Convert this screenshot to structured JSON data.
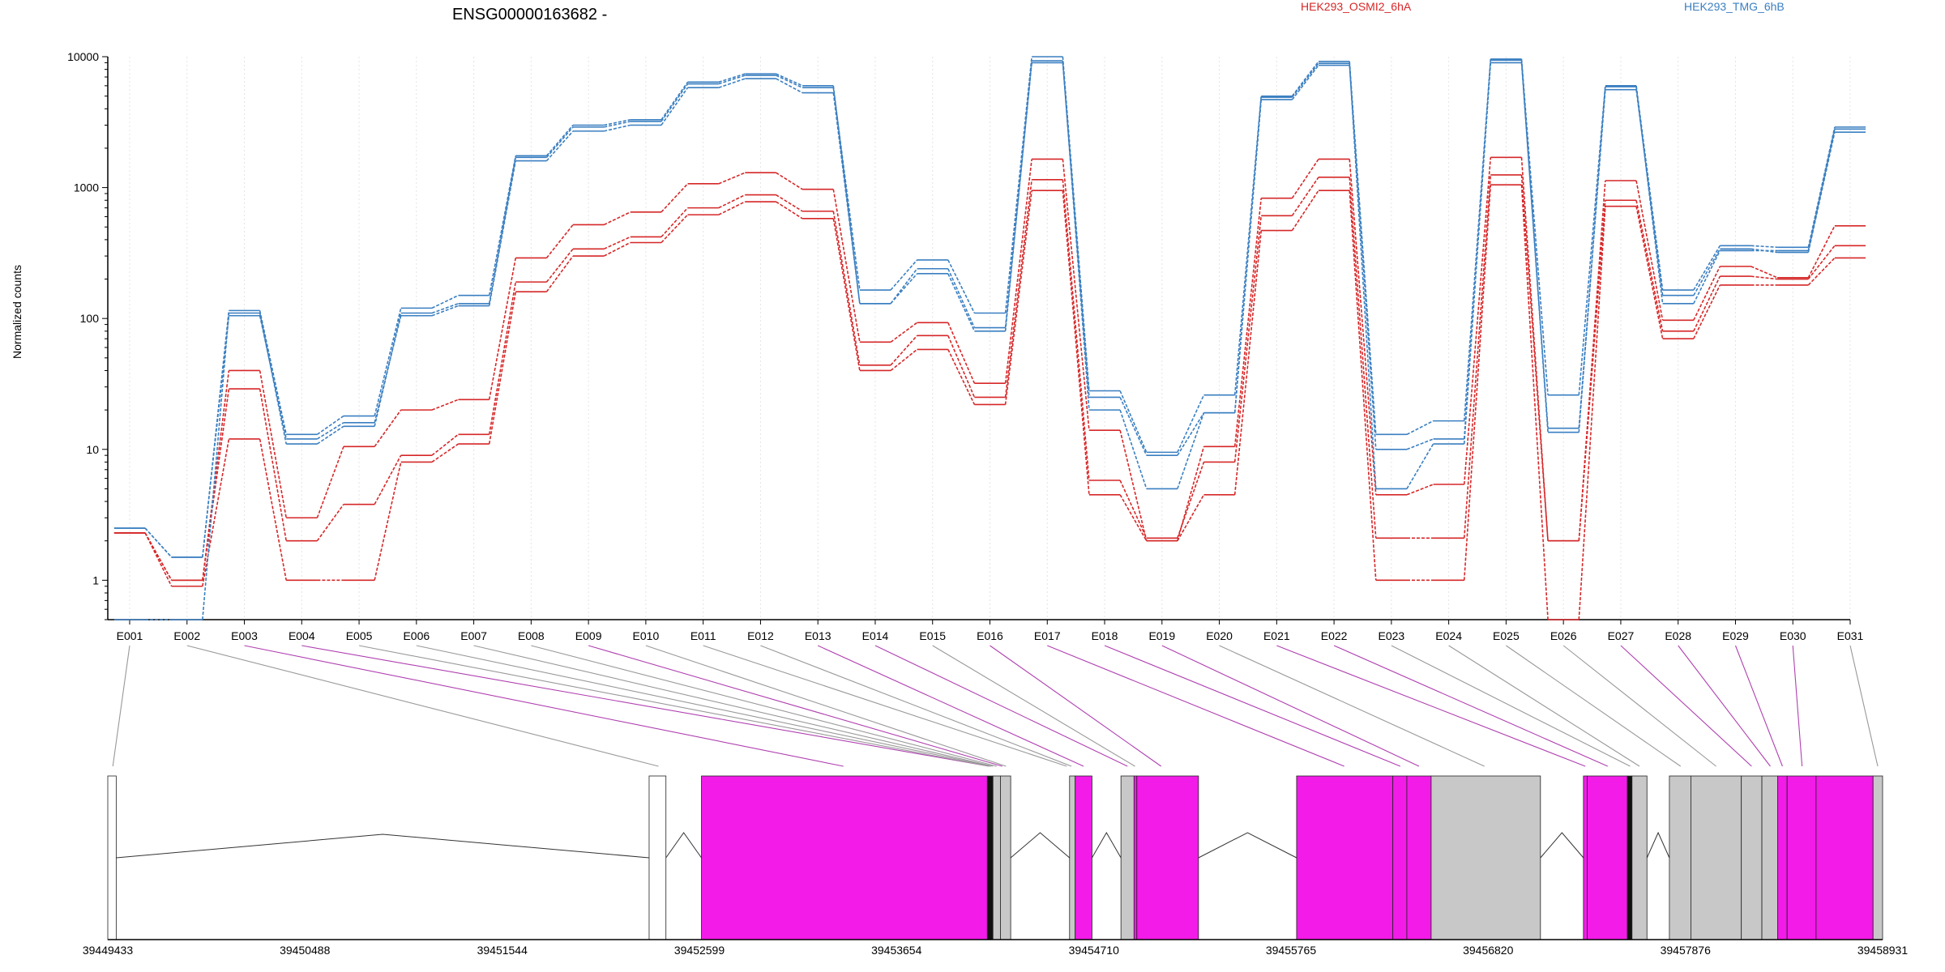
{
  "chart_data": {
    "type": "line",
    "title": "ENSG00000163682 -",
    "ylabel": "Normalized counts",
    "xlabel": "",
    "yscale": "log",
    "ylim": [
      0.5,
      10000
    ],
    "yticks": [
      "1",
      "10",
      "100",
      "1000",
      "10000"
    ],
    "grid": "vertical dotted",
    "legend_position": "top",
    "legend": [
      {
        "name": "HEK293_OSMI2_6hA",
        "color": "#d62728"
      },
      {
        "name": "HEK293_TMG_6hB",
        "color": "#3a7fc1"
      }
    ],
    "categories": [
      "E001",
      "E002",
      "E003",
      "E004",
      "E005",
      "E006",
      "E007",
      "E008",
      "E009",
      "E010",
      "E011",
      "E012",
      "E013",
      "E014",
      "E015",
      "E016",
      "E017",
      "E018",
      "E019",
      "E020",
      "E021",
      "E022",
      "E023",
      "E024",
      "E025",
      "E026",
      "E027",
      "E028",
      "E029",
      "E030",
      "E031"
    ],
    "series": [
      {
        "group": "HEK293_OSMI2_6hA",
        "color": "#d62728",
        "values": [
          2.3,
          0.9,
          12,
          1,
          1,
          8,
          11,
          160,
          300,
          380,
          620,
          780,
          580,
          40,
          58,
          22,
          950,
          4.5,
          2,
          4.5,
          470,
          950,
          1,
          1,
          1050,
          0.5,
          720,
          70,
          180,
          180,
          290
        ]
      },
      {
        "group": "HEK293_OSMI2_6hA",
        "color": "#d62728",
        "values": [
          2.3,
          1,
          29,
          2,
          3.8,
          9,
          13,
          190,
          340,
          420,
          700,
          880,
          660,
          44,
          74,
          25,
          1150,
          5.8,
          2.1,
          8,
          610,
          1200,
          2.1,
          2.1,
          1250,
          2,
          800,
          80,
          210,
          200,
          360
        ]
      },
      {
        "group": "HEK293_OSMI2_6hA",
        "color": "#d62728",
        "values": [
          2.3,
          1,
          40,
          3,
          10.5,
          20,
          24,
          290,
          520,
          650,
          1070,
          1300,
          970,
          66,
          93,
          32,
          1650,
          14,
          2,
          10.5,
          830,
          1650,
          4.5,
          5.4,
          1700,
          2,
          1130,
          97,
          250,
          205,
          510
        ]
      },
      {
        "group": "HEK293_TMG_6hB",
        "color": "#3a7fc1",
        "values": [
          0.5,
          0.5,
          110,
          11,
          15,
          110,
          130,
          1700,
          2900,
          3200,
          6200,
          7200,
          5800,
          165,
          280,
          110,
          10000,
          28,
          9.5,
          26,
          5000,
          9200,
          13,
          16.5,
          9600,
          26,
          6000,
          165,
          360,
          350,
          2900
        ]
      },
      {
        "group": "HEK293_TMG_6hB",
        "color": "#3a7fc1",
        "values": [
          2.5,
          1.5,
          105,
          12,
          16,
          105,
          125,
          1600,
          2700,
          3000,
          5800,
          6800,
          5300,
          130,
          240,
          85,
          9000,
          25,
          9,
          19,
          4700,
          8600,
          10,
          12,
          9000,
          14.5,
          5600,
          150,
          340,
          320,
          2650
        ]
      },
      {
        "group": "HEK293_TMG_6hB",
        "color": "#3a7fc1",
        "values": [
          2.5,
          1.5,
          115,
          13,
          18,
          120,
          150,
          1750,
          3000,
          3300,
          6400,
          7400,
          6000,
          130,
          220,
          80,
          9300,
          20,
          5,
          19,
          4900,
          8900,
          5,
          11,
          9400,
          13.5,
          5900,
          130,
          330,
          330,
          2800
        ]
      }
    ],
    "gene_model": {
      "coordinates": [
        "39449433",
        "39450488",
        "39451544",
        "39452599",
        "39453654",
        "39454710",
        "39455765",
        "39456820",
        "39457876",
        "39458931"
      ],
      "genomic_range": [
        39449433,
        39458931
      ],
      "intron_color": "#000000",
      "highlight_color": "#f21be8",
      "exon_color": "#c8c8c8",
      "blocks": [
        {
          "start": 39449433,
          "end": 39449478,
          "fill": "#ffffff"
        },
        {
          "start": 39452330,
          "end": 39452420,
          "fill": "#ffffff"
        },
        {
          "start": 39452610,
          "end": 39454140,
          "fill": "#f21be8"
        },
        {
          "start": 39454140,
          "end": 39454170,
          "fill": "#111111"
        },
        {
          "start": 39454170,
          "end": 39454210,
          "fill": "#c8c8c8"
        },
        {
          "start": 39454210,
          "end": 39454265,
          "fill": "#c8c8c8"
        },
        {
          "start": 39454580,
          "end": 39454610,
          "fill": "#c8c8c8"
        },
        {
          "start": 39454610,
          "end": 39454700,
          "fill": "#f21be8"
        },
        {
          "start": 39454855,
          "end": 39454925,
          "fill": "#c8c8c8"
        },
        {
          "start": 39454925,
          "end": 39454940,
          "fill": "#f21be8"
        },
        {
          "start": 39454940,
          "end": 39455270,
          "fill": "#f21be8"
        },
        {
          "start": 39455795,
          "end": 39456310,
          "fill": "#f21be8"
        },
        {
          "start": 39456310,
          "end": 39456385,
          "fill": "#f21be8"
        },
        {
          "start": 39456385,
          "end": 39456515,
          "fill": "#f21be8"
        },
        {
          "start": 39456515,
          "end": 39457100,
          "fill": "#c8c8c8"
        },
        {
          "start": 39457330,
          "end": 39457350,
          "fill": "#f21be8"
        },
        {
          "start": 39457350,
          "end": 39457565,
          "fill": "#f21be8"
        },
        {
          "start": 39457565,
          "end": 39457590,
          "fill": "#111111"
        },
        {
          "start": 39457590,
          "end": 39457670,
          "fill": "#c8c8c8"
        },
        {
          "start": 39457790,
          "end": 39457905,
          "fill": "#c8c8c8"
        },
        {
          "start": 39457905,
          "end": 39458175,
          "fill": "#c8c8c8"
        },
        {
          "start": 39458175,
          "end": 39458285,
          "fill": "#c8c8c8"
        },
        {
          "start": 39458285,
          "end": 39458370,
          "fill": "#c8c8c8"
        },
        {
          "start": 39458370,
          "end": 39458420,
          "fill": "#f21be8"
        },
        {
          "start": 39458420,
          "end": 39458575,
          "fill": "#f21be8"
        },
        {
          "start": 39458575,
          "end": 39458880,
          "fill": "#f21be8"
        },
        {
          "start": 39458880,
          "end": 39458931,
          "fill": "#c8c8c8"
        }
      ],
      "introns": [
        [
          39449478,
          39452330
        ],
        [
          39452420,
          39452610
        ],
        [
          39454265,
          39454580
        ],
        [
          39454700,
          39454855
        ],
        [
          39455270,
          39455795
        ],
        [
          39457100,
          39457330
        ],
        [
          39457670,
          39457790
        ]
      ],
      "connectors": [
        {
          "exon": "E001",
          "target": 39449460,
          "color": "#999999"
        },
        {
          "exon": "E002",
          "target": 39452380,
          "color": "#999999"
        },
        {
          "exon": "E003",
          "target": 39453370,
          "color": "#b040b0"
        },
        {
          "exon": "E004",
          "target": 39454150,
          "color": "#b040b0"
        },
        {
          "exon": "E005",
          "target": 39454150,
          "color": "#999999"
        },
        {
          "exon": "E006",
          "target": 39454160,
          "color": "#999999"
        },
        {
          "exon": "E007",
          "target": 39454170,
          "color": "#999999"
        },
        {
          "exon": "E008",
          "target": 39454190,
          "color": "#999999"
        },
        {
          "exon": "E009",
          "target": 39454220,
          "color": "#b040b0"
        },
        {
          "exon": "E010",
          "target": 39454240,
          "color": "#999999"
        },
        {
          "exon": "E011",
          "target": 39454565,
          "color": "#999999"
        },
        {
          "exon": "E012",
          "target": 39454590,
          "color": "#999999"
        },
        {
          "exon": "E013",
          "target": 39454655,
          "color": "#b040b0"
        },
        {
          "exon": "E014",
          "target": 39454890,
          "color": "#b040b0"
        },
        {
          "exon": "E015",
          "target": 39454930,
          "color": "#999999"
        },
        {
          "exon": "E016",
          "target": 39455070,
          "color": "#b040b0"
        },
        {
          "exon": "E017",
          "target": 39456050,
          "color": "#b040b0"
        },
        {
          "exon": "E018",
          "target": 39456350,
          "color": "#b040b0"
        },
        {
          "exon": "E019",
          "target": 39456450,
          "color": "#b040b0"
        },
        {
          "exon": "E020",
          "target": 39456800,
          "color": "#999999"
        },
        {
          "exon": "E021",
          "target": 39457340,
          "color": "#b040b0"
        },
        {
          "exon": "E022",
          "target": 39457460,
          "color": "#b040b0"
        },
        {
          "exon": "E023",
          "target": 39457580,
          "color": "#999999"
        },
        {
          "exon": "E024",
          "target": 39457630,
          "color": "#999999"
        },
        {
          "exon": "E025",
          "target": 39457850,
          "color": "#999999"
        },
        {
          "exon": "E026",
          "target": 39458040,
          "color": "#999999"
        },
        {
          "exon": "E027",
          "target": 39458230,
          "color": "#b040b0"
        },
        {
          "exon": "E028",
          "target": 39458330,
          "color": "#b040b0"
        },
        {
          "exon": "E029",
          "target": 39458395,
          "color": "#b040b0"
        },
        {
          "exon": "E030",
          "target": 39458500,
          "color": "#b040b0"
        },
        {
          "exon": "E031",
          "target": 39458905,
          "color": "#999999"
        }
      ]
    }
  }
}
